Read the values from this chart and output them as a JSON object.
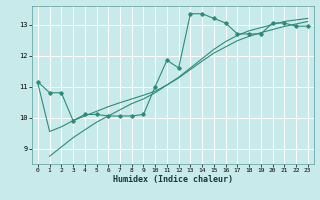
{
  "background_color": "#c8eaea",
  "grid_color": "#ffffff",
  "line_color": "#2e8b7a",
  "xlabel": "Humidex (Indice chaleur)",
  "xlim": [
    -0.5,
    23.5
  ],
  "ylim": [
    8.5,
    13.6
  ],
  "yticks": [
    9,
    10,
    11,
    12,
    13
  ],
  "xticks": [
    0,
    1,
    2,
    3,
    4,
    5,
    6,
    7,
    8,
    9,
    10,
    11,
    12,
    13,
    14,
    15,
    16,
    17,
    18,
    19,
    20,
    21,
    22,
    23
  ],
  "series1_x": [
    0,
    1,
    2,
    3,
    4,
    5,
    6,
    7,
    8,
    9,
    10,
    11,
    12,
    13,
    14,
    15,
    16,
    17,
    18,
    19,
    20,
    21,
    22,
    23
  ],
  "series1_y": [
    11.15,
    10.8,
    10.8,
    9.9,
    10.1,
    10.1,
    10.05,
    10.05,
    10.05,
    10.1,
    11.0,
    11.85,
    11.6,
    13.35,
    13.35,
    13.2,
    13.05,
    12.7,
    12.7,
    12.7,
    13.05,
    13.05,
    12.95,
    12.95
  ],
  "series2_x": [
    1,
    2,
    3,
    4,
    5,
    6,
    7,
    8,
    9,
    10,
    11,
    12,
    13,
    14,
    15,
    16,
    17,
    18,
    19,
    20,
    21,
    22,
    23
  ],
  "series2_y": [
    8.75,
    9.05,
    9.35,
    9.6,
    9.85,
    10.05,
    10.25,
    10.45,
    10.6,
    10.8,
    11.05,
    11.3,
    11.6,
    11.9,
    12.2,
    12.45,
    12.65,
    12.8,
    12.9,
    13.0,
    13.1,
    13.15,
    13.2
  ],
  "series3_x": [
    0,
    1,
    2,
    3,
    4,
    5,
    6,
    7,
    8,
    9,
    10,
    11,
    12,
    13,
    14,
    15,
    16,
    17,
    18,
    19,
    20,
    21,
    22,
    23
  ],
  "series3_y": [
    11.1,
    9.55,
    9.7,
    9.9,
    10.05,
    10.2,
    10.35,
    10.48,
    10.6,
    10.72,
    10.85,
    11.05,
    11.28,
    11.55,
    11.82,
    12.08,
    12.28,
    12.48,
    12.62,
    12.74,
    12.84,
    12.94,
    13.02,
    13.1
  ]
}
